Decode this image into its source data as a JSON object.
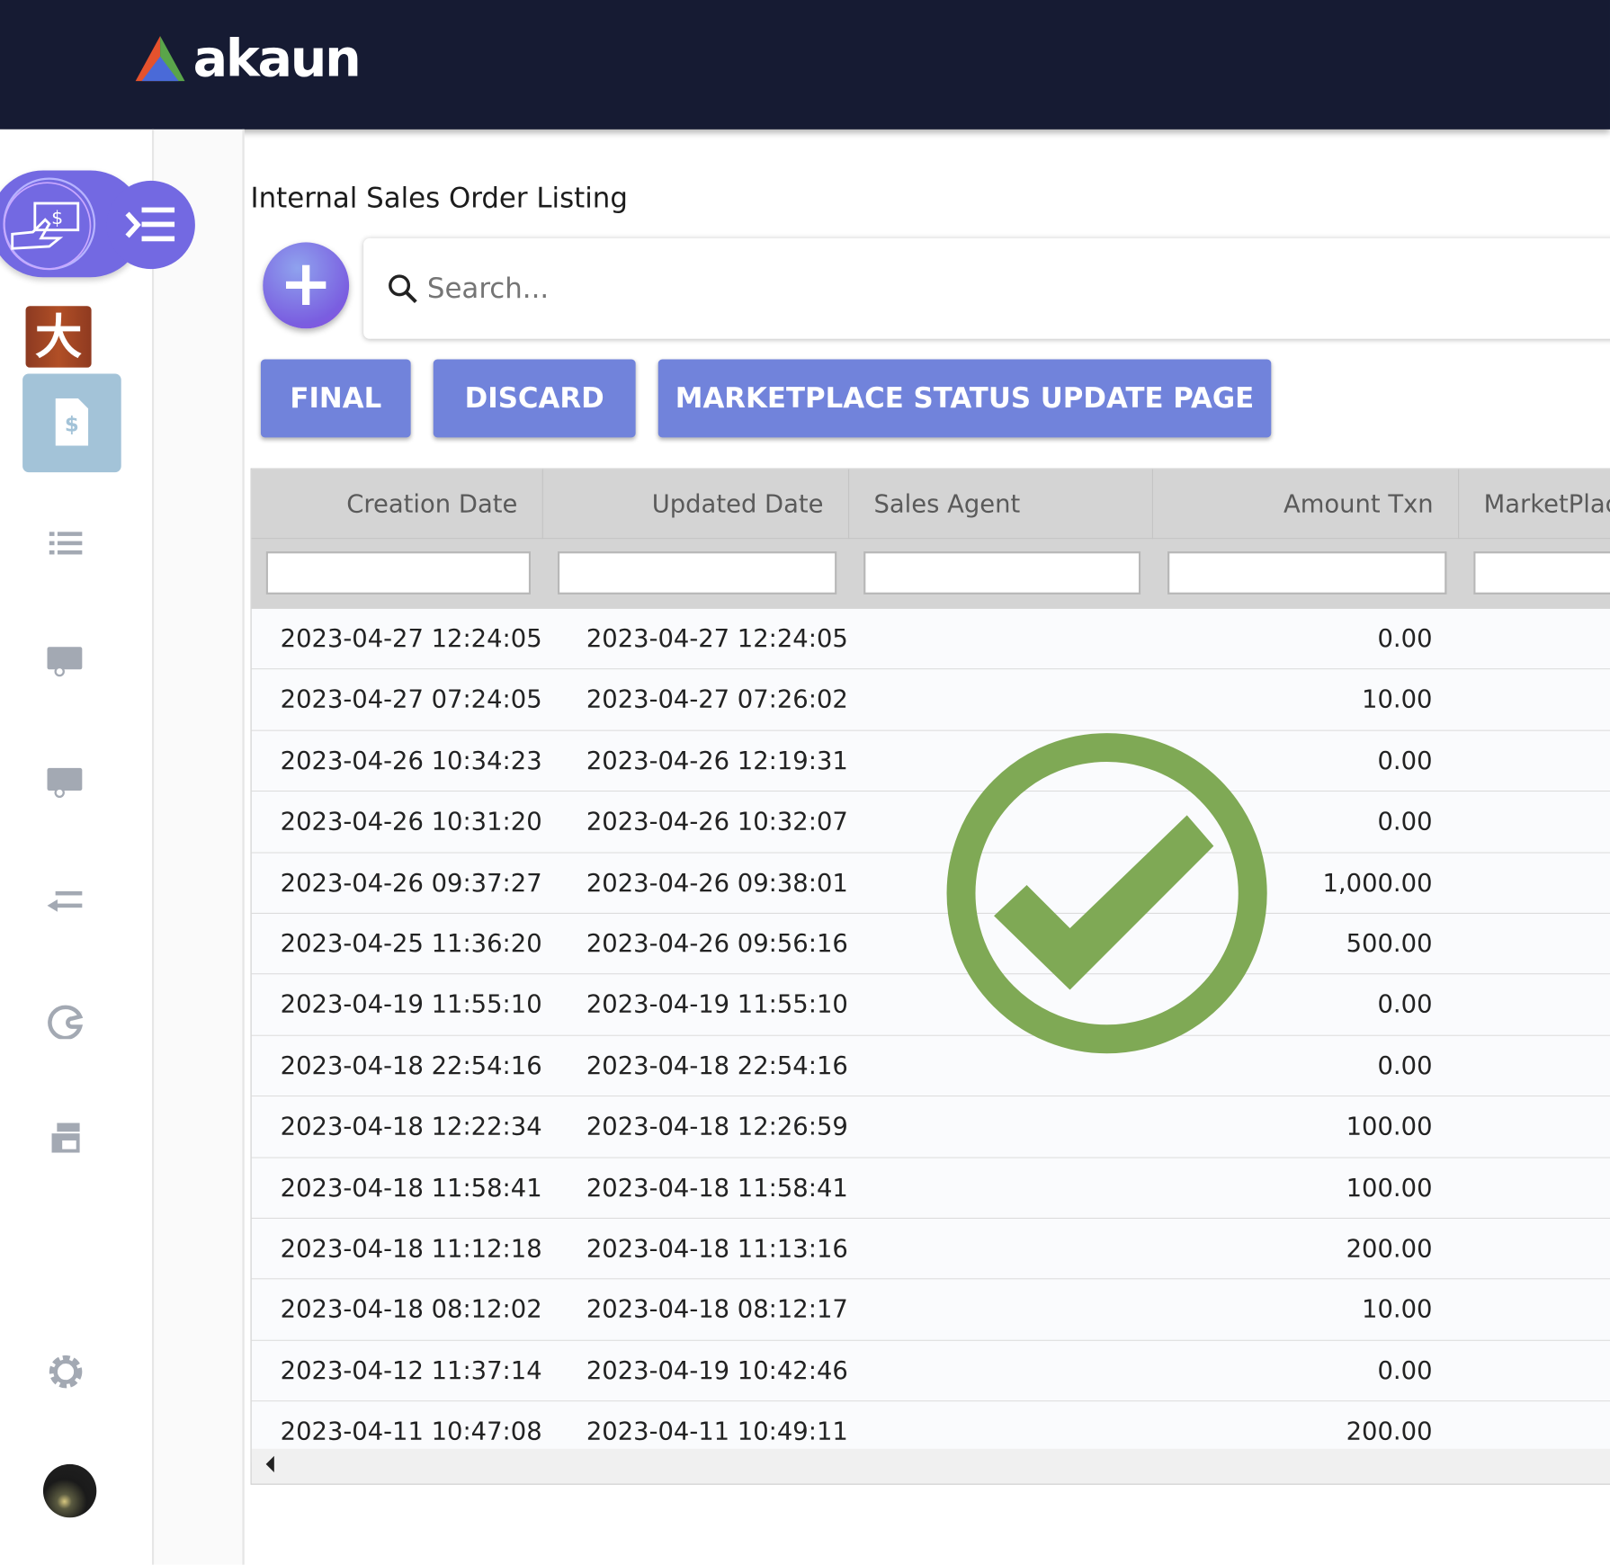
{
  "header": {
    "logo_text": "akaun"
  },
  "sidebar": {
    "icons": [
      "payment-hand-icon",
      "menu-toggle-icon",
      "app-logo-icon",
      "invoice-icon",
      "list-icon",
      "truck-icon",
      "truck-icon",
      "arrow-left-icon",
      "palette-icon",
      "printer-icon",
      "gear-icon",
      "avatar"
    ]
  },
  "main": {
    "title": "Internal Sales Order Listing",
    "search": {
      "placeholder": "Search...",
      "value": ""
    },
    "buttons": {
      "final": "FINAL",
      "discard": "DISCARD",
      "marketplace": "MARKETPLACE STATUS UPDATE PAGE"
    },
    "table": {
      "columns": [
        "Creation Date",
        "Updated Date",
        "Sales Agent",
        "Amount Txn",
        "MarketPlac"
      ],
      "rows": [
        [
          "2023-04-27 12:24:05",
          "2023-04-27 12:24:05",
          "",
          "0.00"
        ],
        [
          "2023-04-27 07:24:05",
          "2023-04-27 07:26:02",
          "",
          "10.00"
        ],
        [
          "2023-04-26 10:34:23",
          "2023-04-26 12:19:31",
          "",
          "0.00"
        ],
        [
          "2023-04-26 10:31:20",
          "2023-04-26 10:32:07",
          "",
          "0.00"
        ],
        [
          "2023-04-26 09:37:27",
          "2023-04-26 09:38:01",
          "",
          "1,000.00"
        ],
        [
          "2023-04-25 11:36:20",
          "2023-04-26 09:56:16",
          "",
          "500.00"
        ],
        [
          "2023-04-19 11:55:10",
          "2023-04-19 11:55:10",
          "",
          "0.00"
        ],
        [
          "2023-04-18 22:54:16",
          "2023-04-18 22:54:16",
          "",
          "0.00"
        ],
        [
          "2023-04-18 12:22:34",
          "2023-04-18 12:26:59",
          "",
          "100.00"
        ],
        [
          "2023-04-18 11:58:41",
          "2023-04-18 11:58:41",
          "",
          "100.00"
        ],
        [
          "2023-04-18 11:12:18",
          "2023-04-18 11:13:16",
          "",
          "200.00"
        ],
        [
          "2023-04-18 08:12:02",
          "2023-04-18 08:12:17",
          "",
          "10.00"
        ],
        [
          "2023-04-12 11:37:14",
          "2023-04-19 10:42:46",
          "",
          "0.00"
        ],
        [
          "2023-04-11 10:47:08",
          "2023-04-11 10:49:11",
          "",
          "200.00"
        ]
      ]
    }
  },
  "overlay": {
    "icon": "success-check-icon",
    "color": "#7fa955"
  },
  "colors": {
    "header_bg": "#161b33",
    "accent": "#7183db",
    "menu_pill": "#7369e2"
  }
}
